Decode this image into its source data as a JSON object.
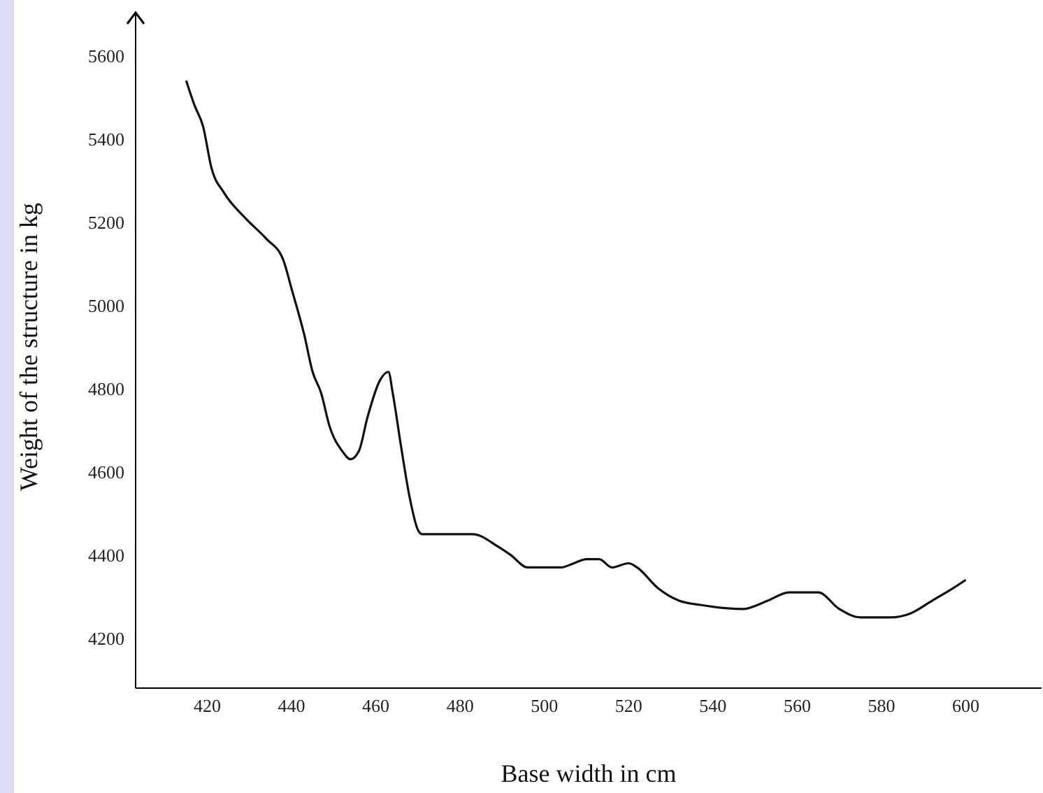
{
  "chart_data": {
    "type": "line",
    "xlabel": "Base width in cm",
    "ylabel": "Weight of the structure in kg",
    "x": [
      415,
      417,
      419,
      421,
      424,
      429,
      434,
      438,
      440,
      443,
      445,
      447,
      449,
      452,
      454,
      456,
      458,
      461,
      463,
      464,
      466,
      468,
      470,
      471,
      477,
      483,
      489,
      492,
      496,
      504,
      507,
      510,
      513,
      516,
      520,
      522,
      527,
      532,
      537,
      547,
      553,
      558,
      565,
      570,
      575,
      582,
      587,
      592,
      597,
      600
    ],
    "series": [
      {
        "color": "#111111",
        "values": [
          5540,
          5480,
          5430,
          5330,
          5270,
          5210,
          5160,
          5110,
          5040,
          4930,
          4840,
          4790,
          4710,
          4650,
          4630,
          4650,
          4730,
          4820,
          4840,
          4790,
          4660,
          4540,
          4460,
          4450,
          4450,
          4450,
          4420,
          4400,
          4370,
          4370,
          4380,
          4390,
          4390,
          4370,
          4380,
          4370,
          4320,
          4290,
          4280,
          4270,
          4290,
          4310,
          4310,
          4270,
          4250,
          4250,
          4260,
          4290,
          4320,
          4340
        ]
      }
    ],
    "xlim": [
      403,
      618
    ],
    "xticks": [
      420,
      440,
      460,
      480,
      500,
      520,
      540,
      560,
      580,
      600
    ],
    "ylim": [
      4080,
      5700
    ],
    "yticks": [
      4200,
      4400,
      4600,
      4800,
      5000,
      5200,
      5400,
      5600
    ],
    "grid": false,
    "legend": false,
    "marker": "none",
    "line_style": "solid"
  }
}
